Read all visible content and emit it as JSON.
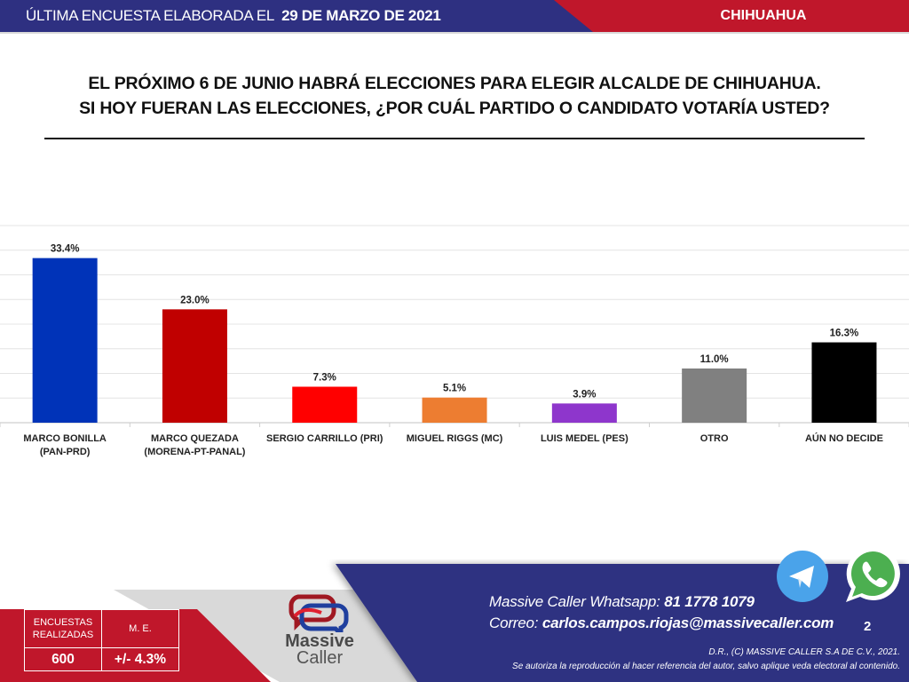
{
  "header": {
    "survey_prefix": "ÚLTIMA ENCUESTA ELABORADA EL",
    "survey_date": "29 DE MARZO DE 2021",
    "region": "CHIHUAHUA"
  },
  "question": {
    "line1": "EL PRÓXIMO 6 DE JUNIO HABRÁ ELECCIONES PARA ELEGIR ALCALDE DE CHIHUAHUA.",
    "line2": "SI HOY FUERAN LAS ELECCIONES, ¿POR CUÁL PARTIDO O CANDIDATO VOTARÍA USTED?"
  },
  "chart_data": {
    "type": "bar",
    "title": "",
    "xlabel": "",
    "ylabel": "",
    "ylim": [
      0,
      40
    ],
    "grid": true,
    "grid_step": 5,
    "categories": [
      [
        "MARCO BONILLA",
        "(PAN-PRD)"
      ],
      [
        "MARCO QUEZADA",
        "(MORENA-PT-PANAL)"
      ],
      [
        "SERGIO CARRILLO (PRI)"
      ],
      [
        "MIGUEL RIGGS (MC)"
      ],
      [
        "LUIS MEDEL (PES)"
      ],
      [
        "OTRO"
      ],
      [
        "AÚN NO DECIDE"
      ]
    ],
    "values": [
      33.4,
      23.0,
      7.3,
      5.1,
      3.9,
      11.0,
      16.3
    ],
    "labels": [
      "33.4%",
      "23.0%",
      "7.3%",
      "5.1%",
      "3.9%",
      "11.0%",
      "16.3%"
    ],
    "colors": [
      "#0033b8",
      "#c00000",
      "#ff0000",
      "#ed7d31",
      "#8e36cc",
      "#808080",
      "#000000"
    ]
  },
  "stats": {
    "surveys_label_1": "ENCUESTAS",
    "surveys_label_2": "REALIZADAS",
    "surveys_value": "600",
    "me_label": "M. E.",
    "me_value": "+/- 4.3%"
  },
  "logo": {
    "line1": "Massive",
    "line2": "Caller"
  },
  "contact": {
    "whatsapp_label": "Massive Caller Whatsapp:",
    "whatsapp_number": "81 1778 1079",
    "email_label": "Correo:",
    "email": "carlos.campos.riojas@massivecaller.com"
  },
  "footer": {
    "copyright": "D.R., (C) MASSIVE CALLER S.A DE C.V., 2021.",
    "notice": "Se autoriza la reproducción al hacer referencia del autor, salvo aplique veda electoral al contenido.",
    "page_number": "2"
  },
  "colors": {
    "navy": "#2e3081",
    "red": "#c0172b",
    "telegram": "#4aa3ea",
    "whatsapp": "#4caf50"
  }
}
